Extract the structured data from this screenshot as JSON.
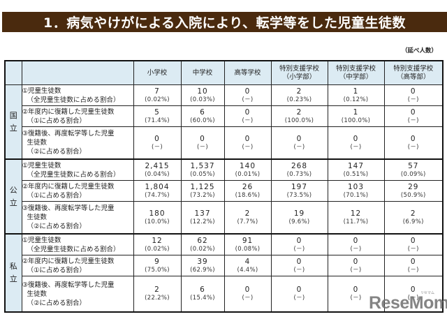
{
  "title": "1．病気やけがによる入院により、転学等をした児童生徒数",
  "unit_note": "（延べ人数）",
  "columns": [
    {
      "line1": "小学校",
      "line2": ""
    },
    {
      "line1": "中学校",
      "line2": ""
    },
    {
      "line1": "高等学校",
      "line2": ""
    },
    {
      "line1": "特別支援学校",
      "line2": "（小学部）"
    },
    {
      "line1": "特別支援学校",
      "line2": "（中学部）"
    },
    {
      "line1": "特別支援学校",
      "line2": "（高等部）"
    }
  ],
  "row_labels": [
    {
      "line1": "①児童生徒数",
      "line2": "（全児童生徒数に占める割合）",
      "line3": ""
    },
    {
      "line1": "②年度内に復籍した児童生徒数",
      "line2": "（①に占める割合）",
      "line3": ""
    },
    {
      "line1": "③復籍後、再度転学等した児童",
      "line2": "生徒数",
      "line3": "（②に占める割合）"
    }
  ],
  "groups": [
    {
      "name_top": "国",
      "name_bottom": "立",
      "rows": [
        {
          "cells": [
            {
              "n": "7",
              "p": "(0.02%)"
            },
            {
              "n": "10",
              "p": "(0.03%)"
            },
            {
              "n": "0",
              "p": "(－)"
            },
            {
              "n": "2",
              "p": "(0.23%)"
            },
            {
              "n": "1",
              "p": "(0.12%)"
            },
            {
              "n": "0",
              "p": "(－)"
            }
          ]
        },
        {
          "cells": [
            {
              "n": "5",
              "p": "(71.4%)"
            },
            {
              "n": "6",
              "p": "(60.0%)"
            },
            {
              "n": "0",
              "p": "(－)"
            },
            {
              "n": "2",
              "p": "(100.0%)"
            },
            {
              "n": "1",
              "p": "(100.0%)"
            },
            {
              "n": "0",
              "p": "(－)"
            }
          ]
        },
        {
          "cells": [
            {
              "n": "0",
              "p": "(－)"
            },
            {
              "n": "0",
              "p": "(－)"
            },
            {
              "n": "0",
              "p": "(－)"
            },
            {
              "n": "0",
              "p": "(－)"
            },
            {
              "n": "0",
              "p": "(－)"
            },
            {
              "n": "0",
              "p": "(－)"
            }
          ]
        }
      ]
    },
    {
      "name_top": "公",
      "name_bottom": "立",
      "rows": [
        {
          "cells": [
            {
              "n": "2,415",
              "p": "(0.04%)"
            },
            {
              "n": "1,537",
              "p": "(0.05%)"
            },
            {
              "n": "140",
              "p": "(0.01%)"
            },
            {
              "n": "268",
              "p": "(0.73%)"
            },
            {
              "n": "147",
              "p": "(0.51%)"
            },
            {
              "n": "57",
              "p": "(0.09%)"
            }
          ]
        },
        {
          "cells": [
            {
              "n": "1,804",
              "p": "(74.7%)"
            },
            {
              "n": "1,125",
              "p": "(73.2%)"
            },
            {
              "n": "26",
              "p": "(18.6%)"
            },
            {
              "n": "197",
              "p": "(73.5%)"
            },
            {
              "n": "103",
              "p": "(70.1%)"
            },
            {
              "n": "29",
              "p": "(50.9%)"
            }
          ]
        },
        {
          "cells": [
            {
              "n": "180",
              "p": "(10.0%)"
            },
            {
              "n": "137",
              "p": "(12.2%)"
            },
            {
              "n": "2",
              "p": "(7.7%)"
            },
            {
              "n": "19",
              "p": "(9.6%)"
            },
            {
              "n": "12",
              "p": "(11.7%)"
            },
            {
              "n": "2",
              "p": "(6.9%)"
            }
          ]
        }
      ]
    },
    {
      "name_top": "私",
      "name_bottom": "立",
      "rows": [
        {
          "cells": [
            {
              "n": "12",
              "p": "(0.02%)"
            },
            {
              "n": "62",
              "p": "(0.02%)"
            },
            {
              "n": "91",
              "p": "(0.08%)"
            },
            {
              "n": "0",
              "p": "(－)"
            },
            {
              "n": "0",
              "p": "(－)"
            },
            {
              "n": "0",
              "p": "(－)"
            }
          ]
        },
        {
          "cells": [
            {
              "n": "9",
              "p": "(75.0%)"
            },
            {
              "n": "39",
              "p": "(62.9%)"
            },
            {
              "n": "4",
              "p": "(4.4%)"
            },
            {
              "n": "0",
              "p": "(－)"
            },
            {
              "n": "0",
              "p": "(－)"
            },
            {
              "n": "0",
              "p": "(－)"
            }
          ]
        },
        {
          "cells": [
            {
              "n": "2",
              "p": "(22.2%)"
            },
            {
              "n": "6",
              "p": "(15.4%)"
            },
            {
              "n": "0",
              "p": "(－)"
            },
            {
              "n": "0",
              "p": "(－)"
            },
            {
              "n": "0",
              "p": "(－)"
            },
            {
              "n": "0",
              "p": "(－)"
            }
          ]
        }
      ]
    }
  ],
  "watermark": {
    "text": "ReseMom",
    "kana": "リセマム"
  }
}
